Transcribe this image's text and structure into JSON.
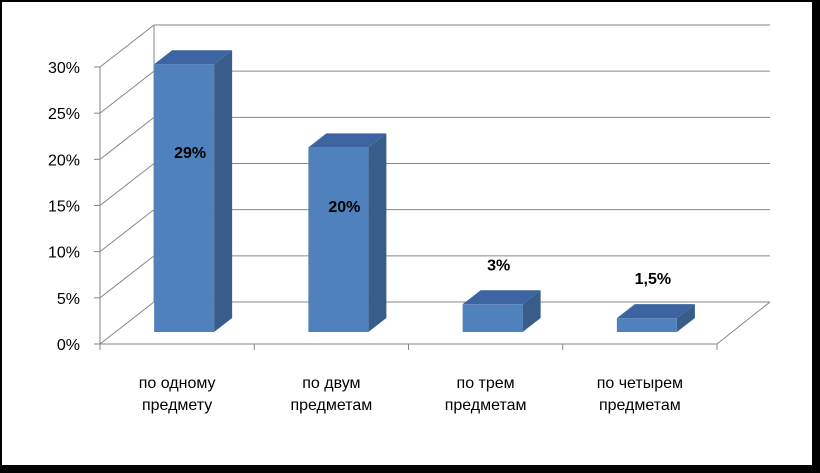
{
  "chart_data": {
    "type": "bar",
    "style": "3d-column",
    "categories": [
      [
        "по одному",
        "предмету"
      ],
      [
        "по двум",
        "предметам"
      ],
      [
        "по трем",
        "предметам"
      ],
      [
        "по четырем",
        "предметам"
      ]
    ],
    "values": [
      29,
      20,
      3,
      1.5
    ],
    "data_labels": [
      "29%",
      "20%",
      "3%",
      "1,5%"
    ],
    "yticks": [
      "0%",
      "5%",
      "10%",
      "15%",
      "20%",
      "25%",
      "30%"
    ],
    "ylim": [
      0,
      30
    ],
    "grid": true,
    "legend": "none",
    "colors": {
      "bar_front": "#4F81BD",
      "bar_side": "#385D8A",
      "bar_top": "#3B64A0",
      "grid": "#868686"
    }
  }
}
